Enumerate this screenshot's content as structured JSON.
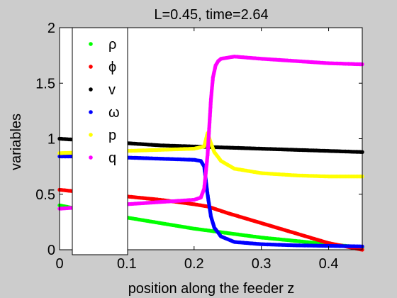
{
  "figure": {
    "background": "#cccccc",
    "axes_background": "#ffffff"
  },
  "chart_data": {
    "type": "scatter",
    "title": "L=0.45, time=2.64",
    "xlabel": "position along the feeder z",
    "ylabel": "variables",
    "xlim": [
      0,
      0.45
    ],
    "ylim": [
      0,
      2
    ],
    "xticks": [
      0,
      0.1,
      0.2,
      0.3,
      0.4
    ],
    "xtick_labels": [
      "0",
      "0.1",
      "0.2",
      "0.3",
      "0.4"
    ],
    "yticks": [
      0,
      0.5,
      1,
      1.5,
      2
    ],
    "ytick_labels": [
      "0",
      "0.5",
      "1",
      "1.5",
      "2"
    ],
    "grid": false,
    "legend_position": "top-left",
    "series": [
      {
        "name": "ρ",
        "color": "#00ff00",
        "x": [
          0,
          0.05,
          0.1,
          0.15,
          0.2,
          0.25,
          0.3,
          0.35,
          0.4,
          0.45
        ],
        "y": [
          0.4,
          0.34,
          0.29,
          0.24,
          0.19,
          0.15,
          0.11,
          0.08,
          0.05,
          0.02
        ]
      },
      {
        "name": "ϕ",
        "color": "#ff0000",
        "x": [
          0,
          0.05,
          0.1,
          0.15,
          0.2,
          0.22,
          0.25,
          0.3,
          0.35,
          0.4,
          0.45
        ],
        "y": [
          0.54,
          0.51,
          0.48,
          0.45,
          0.41,
          0.39,
          0.33,
          0.24,
          0.15,
          0.06,
          0.0
        ]
      },
      {
        "name": "v",
        "color": "#000000",
        "x": [
          0,
          0.05,
          0.1,
          0.15,
          0.2,
          0.25,
          0.3,
          0.35,
          0.4,
          0.45
        ],
        "y": [
          1.0,
          0.98,
          0.96,
          0.94,
          0.93,
          0.92,
          0.91,
          0.9,
          0.89,
          0.88
        ]
      },
      {
        "name": "ω",
        "color": "#0000ff",
        "x": [
          0,
          0.05,
          0.1,
          0.15,
          0.2,
          0.21,
          0.215,
          0.22,
          0.225,
          0.23,
          0.24,
          0.26,
          0.3,
          0.35,
          0.4,
          0.45
        ],
        "y": [
          0.84,
          0.84,
          0.83,
          0.82,
          0.81,
          0.8,
          0.75,
          0.5,
          0.3,
          0.2,
          0.12,
          0.07,
          0.05,
          0.04,
          0.035,
          0.03
        ]
      },
      {
        "name": "p",
        "color": "#ffff00",
        "x": [
          0,
          0.05,
          0.1,
          0.15,
          0.2,
          0.215,
          0.22,
          0.225,
          0.23,
          0.24,
          0.26,
          0.3,
          0.35,
          0.4,
          0.45
        ],
        "y": [
          0.87,
          0.88,
          0.89,
          0.9,
          0.91,
          0.93,
          1.05,
          0.96,
          0.88,
          0.8,
          0.73,
          0.69,
          0.67,
          0.66,
          0.66
        ]
      },
      {
        "name": "q",
        "color": "#ff00ff",
        "x": [
          0,
          0.05,
          0.1,
          0.15,
          0.2,
          0.21,
          0.215,
          0.22,
          0.222,
          0.225,
          0.228,
          0.232,
          0.236,
          0.24,
          0.25,
          0.26,
          0.3,
          0.35,
          0.4,
          0.45
        ],
        "y": [
          0.37,
          0.39,
          0.41,
          0.43,
          0.45,
          0.47,
          0.55,
          0.85,
          1.05,
          1.35,
          1.55,
          1.66,
          1.7,
          1.72,
          1.73,
          1.74,
          1.72,
          1.7,
          1.68,
          1.67
        ]
      }
    ]
  }
}
